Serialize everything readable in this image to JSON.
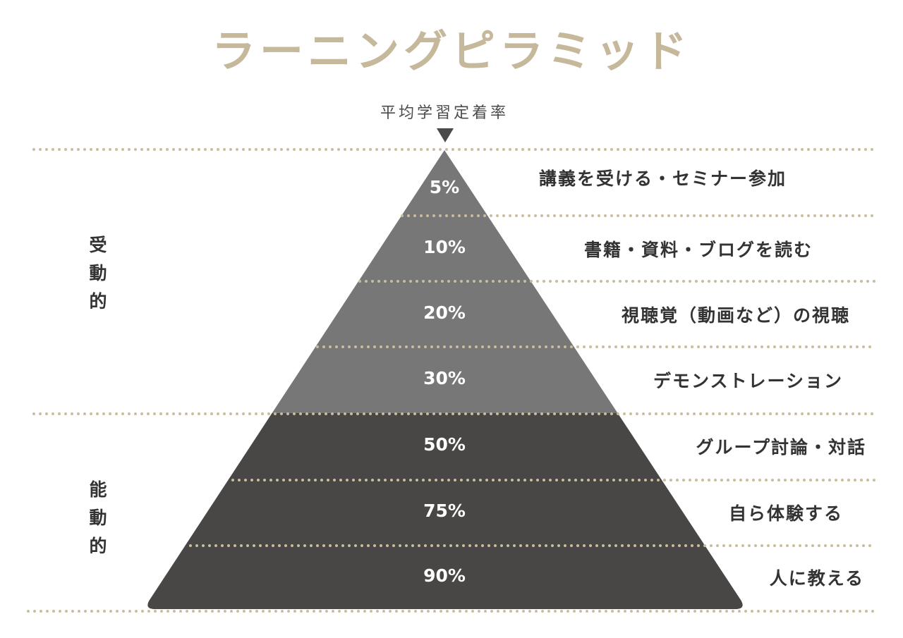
{
  "title": "ラーニングピラミッド",
  "apex_label": "平均学習定着率",
  "colors": {
    "title": "#c6b89a",
    "dots": "#c9bd9e",
    "passive_fill": "#777777",
    "active_fill": "#484745",
    "text_dark": "#333333"
  },
  "groups": {
    "passive": "受動的",
    "active": "能動的"
  },
  "levels": [
    {
      "rate": "5%",
      "label": "講義を受ける・セミナー参加",
      "group": "passive"
    },
    {
      "rate": "10%",
      "label": "書籍・資料・ブログを読む",
      "group": "passive"
    },
    {
      "rate": "20%",
      "label": "視聴覚（動画など）の視聴",
      "group": "passive"
    },
    {
      "rate": "30%",
      "label": "デモンストレーション",
      "group": "passive"
    },
    {
      "rate": "50%",
      "label": "グループ討論・対話",
      "group": "active"
    },
    {
      "rate": "75%",
      "label": "自ら体験する",
      "group": "active"
    },
    {
      "rate": "90%",
      "label": "人に教える",
      "group": "active"
    }
  ]
}
